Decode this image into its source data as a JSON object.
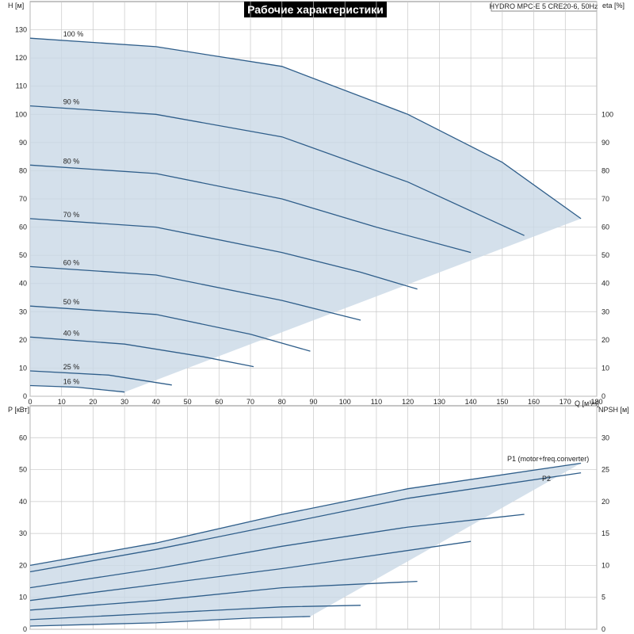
{
  "header": {
    "title": "Рабочие характеристики",
    "model": "HYDRO MPC-E 5 CRE20-6, 50Hz"
  },
  "colors": {
    "area": "#c9d8e6",
    "curve": "#2f5e8a",
    "magenta": "#ff1fd6",
    "black": "#111111"
  },
  "chart_data": [
    {
      "type": "line",
      "xlabel": "Q [м³/ч]",
      "ylabel": "H [м]",
      "y2label": "eta [%]",
      "xlim": [
        0,
        180
      ],
      "ylim": [
        0,
        140
      ],
      "x_ticks": [
        0,
        10,
        20,
        30,
        40,
        50,
        60,
        70,
        80,
        90,
        100,
        110,
        120,
        130,
        140,
        150,
        160,
        170,
        180
      ],
      "y_ticks": [
        0,
        10,
        20,
        30,
        40,
        50,
        60,
        70,
        80,
        90,
        100,
        110,
        120,
        130
      ],
      "y2_ticks": [
        0,
        10,
        20,
        30,
        40,
        50,
        60,
        70,
        80,
        90,
        100
      ],
      "speed_labels": [
        {
          "text": "100 %",
          "q": 10.5,
          "h": 127
        },
        {
          "text": "90 %",
          "q": 10.5,
          "h": 103
        },
        {
          "text": "80 %",
          "q": 10.5,
          "h": 82
        },
        {
          "text": "70 %",
          "q": 10.5,
          "h": 63
        },
        {
          "text": "60 %",
          "q": 10.5,
          "h": 46
        },
        {
          "text": "50 %",
          "q": 10.5,
          "h": 32
        },
        {
          "text": "40 %",
          "q": 10.5,
          "h": 21
        },
        {
          "text": "25 %",
          "q": 10.5,
          "h": 9
        },
        {
          "text": "16 %",
          "q": 10.5,
          "h": 3.8
        }
      ],
      "series": [
        {
          "values": [
            [
              0,
              127
            ],
            [
              40,
              124
            ],
            [
              80,
              117
            ],
            [
              120,
              100
            ],
            [
              150,
              83
            ],
            [
              175,
              63
            ]
          ]
        },
        {
          "values": [
            [
              0,
              103
            ],
            [
              40,
              100
            ],
            [
              80,
              92
            ],
            [
              120,
              76
            ],
            [
              157,
              57
            ]
          ]
        },
        {
          "values": [
            [
              0,
              82
            ],
            [
              40,
              79
            ],
            [
              80,
              70
            ],
            [
              110,
              60
            ],
            [
              140,
              51
            ]
          ]
        },
        {
          "values": [
            [
              0,
              63
            ],
            [
              40,
              60
            ],
            [
              80,
              51
            ],
            [
              105,
              44
            ],
            [
              123,
              38
            ]
          ]
        },
        {
          "values": [
            [
              0,
              46
            ],
            [
              40,
              43
            ],
            [
              80,
              34
            ],
            [
              105,
              27
            ]
          ]
        },
        {
          "values": [
            [
              0,
              32
            ],
            [
              40,
              29
            ],
            [
              70,
              22
            ],
            [
              89,
              16
            ]
          ]
        },
        {
          "values": [
            [
              0,
              21
            ],
            [
              30,
              18.5
            ],
            [
              55,
              14
            ],
            [
              71,
              10.5
            ]
          ]
        },
        {
          "values": [
            [
              0,
              9
            ],
            [
              25,
              7.5
            ],
            [
              45,
              4
            ]
          ]
        },
        {
          "values": [
            [
              0,
              3.8
            ],
            [
              15,
              3.2
            ],
            [
              30,
              1.5
            ]
          ]
        }
      ]
    },
    {
      "type": "line",
      "xlabel": "",
      "ylabel": "P [кВт]",
      "y2label": "NPSH [м]",
      "xlim": [
        0,
        180
      ],
      "ylim": [
        0,
        70
      ],
      "y_ticks": [
        0,
        10,
        20,
        30,
        40,
        50,
        60
      ],
      "y2_ticks": [
        0,
        5,
        10,
        15,
        20,
        25,
        30
      ],
      "annotations": [
        "P1 (motor+freq.converter)",
        "P2"
      ],
      "series": [
        {
          "values": [
            [
              0,
              20
            ],
            [
              40,
              27
            ],
            [
              80,
              36
            ],
            [
              120,
              44
            ],
            [
              175,
              52
            ]
          ]
        },
        {
          "values": [
            [
              0,
              18
            ],
            [
              40,
              25
            ],
            [
              80,
              33
            ],
            [
              120,
              41
            ],
            [
              175,
              49
            ]
          ]
        },
        {
          "values": [
            [
              0,
              13
            ],
            [
              40,
              19
            ],
            [
              80,
              26
            ],
            [
              120,
              32
            ],
            [
              157,
              36
            ]
          ]
        },
        {
          "values": [
            [
              0,
              9
            ],
            [
              40,
              14
            ],
            [
              80,
              19
            ],
            [
              140,
              27.5
            ]
          ]
        },
        {
          "values": [
            [
              0,
              6
            ],
            [
              40,
              9
            ],
            [
              80,
              13
            ],
            [
              123,
              15
            ]
          ]
        },
        {
          "values": [
            [
              0,
              3
            ],
            [
              40,
              5
            ],
            [
              80,
              7
            ],
            [
              105,
              7.5
            ]
          ]
        },
        {
          "values": [
            [
              0,
              1
            ],
            [
              40,
              2
            ],
            [
              70,
              3.5
            ],
            [
              89,
              4
            ]
          ]
        }
      ]
    }
  ]
}
